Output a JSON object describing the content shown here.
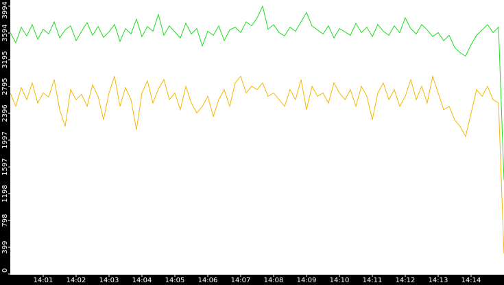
{
  "chart_data": {
    "type": "line",
    "x": [
      0,
      10,
      20,
      30,
      40,
      50,
      60,
      70,
      80,
      90,
      100,
      110,
      120,
      130,
      140,
      150,
      160,
      170,
      180,
      190,
      200,
      210,
      220,
      230,
      240,
      250,
      260,
      270,
      280,
      290,
      300,
      310,
      320,
      330,
      340,
      350,
      360,
      370,
      380,
      390,
      400,
      410,
      420,
      430,
      440,
      450,
      460,
      470,
      480,
      490,
      500,
      510,
      520,
      530,
      540,
      550,
      560,
      570,
      580,
      590,
      600,
      610,
      620,
      630,
      640,
      650,
      660,
      670,
      680,
      690,
      700,
      710,
      720,
      730,
      740,
      750,
      760,
      770,
      780,
      790,
      800,
      810,
      820,
      830,
      840,
      850,
      860,
      870,
      880,
      890,
      900
    ],
    "series": [
      {
        "color": "#1edc1e",
        "values": [
          3600,
          3450,
          3680,
          3550,
          3720,
          3500,
          3650,
          3580,
          3760,
          3520,
          3640,
          3700,
          3480,
          3620,
          3750,
          3560,
          3690,
          3530,
          3610,
          3720,
          3470,
          3660,
          3580,
          3800,
          3540,
          3690,
          3620,
          3870,
          3560,
          3700,
          3610,
          3520,
          3740,
          3580,
          3660,
          3400,
          3620,
          3560,
          3700,
          3480,
          3640,
          3680,
          3600,
          3760,
          3700,
          3820,
          3994,
          3650,
          3720,
          3600,
          3550,
          3680,
          3620,
          3760,
          3900,
          3700,
          3640,
          3580,
          3700,
          3520,
          3660,
          3610,
          3560,
          3740,
          3600,
          3680,
          3540,
          3720,
          3620,
          3560,
          3700,
          3600,
          3820,
          3660,
          3580,
          3720,
          3640,
          3540,
          3600,
          3480,
          3560,
          3380,
          3300,
          3250,
          3420,
          3560,
          3640,
          3720,
          3600,
          3680,
          1400
        ]
      },
      {
        "color": "#f5b800",
        "values": [
          2700,
          2500,
          2780,
          2600,
          2850,
          2550,
          2700,
          2640,
          2900,
          2450,
          2200,
          2750,
          2600,
          2680,
          2500,
          2820,
          2650,
          2300,
          2700,
          2950,
          2500,
          2780,
          2600,
          2150,
          2700,
          2880,
          2550,
          2760,
          2900,
          2600,
          2700,
          2450,
          2800,
          2550,
          2400,
          2500,
          2650,
          2350,
          2600,
          2750,
          2500,
          2850,
          2950,
          2700,
          2800,
          2750,
          2850,
          2650,
          2700,
          2600,
          2500,
          2750,
          2600,
          2900,
          2450,
          2800,
          2650,
          2700,
          2550,
          2850,
          2700,
          2600,
          2750,
          2500,
          2800,
          2650,
          2300,
          2700,
          2850,
          2600,
          2750,
          2500,
          2650,
          2900,
          2600,
          2800,
          2550,
          2950,
          2700,
          2450,
          2500,
          2300,
          2200,
          2050,
          2400,
          2750,
          2650,
          2800,
          2600,
          2550,
          300
        ]
      }
    ],
    "xlim": [
      0,
      900
    ],
    "xticks": [
      {
        "value": 60,
        "label": "14:01"
      },
      {
        "value": 120,
        "label": "14:02"
      },
      {
        "value": 180,
        "label": "14:03"
      },
      {
        "value": 240,
        "label": "14:04"
      },
      {
        "value": 300,
        "label": "14:05"
      },
      {
        "value": 360,
        "label": "14:06"
      },
      {
        "value": 420,
        "label": "14:07"
      },
      {
        "value": 480,
        "label": "14:08"
      },
      {
        "value": 540,
        "label": "14:09"
      },
      {
        "value": 600,
        "label": "14:10"
      },
      {
        "value": 660,
        "label": "14:11"
      },
      {
        "value": 720,
        "label": "14:12"
      },
      {
        "value": 780,
        "label": "14:13"
      },
      {
        "value": 840,
        "label": "14:14"
      }
    ],
    "ylim": [
      0,
      4086
    ],
    "yticks": [
      0,
      399,
      798,
      1198,
      1597,
      1997,
      2396,
      2795,
      3195,
      3594,
      3994
    ]
  }
}
